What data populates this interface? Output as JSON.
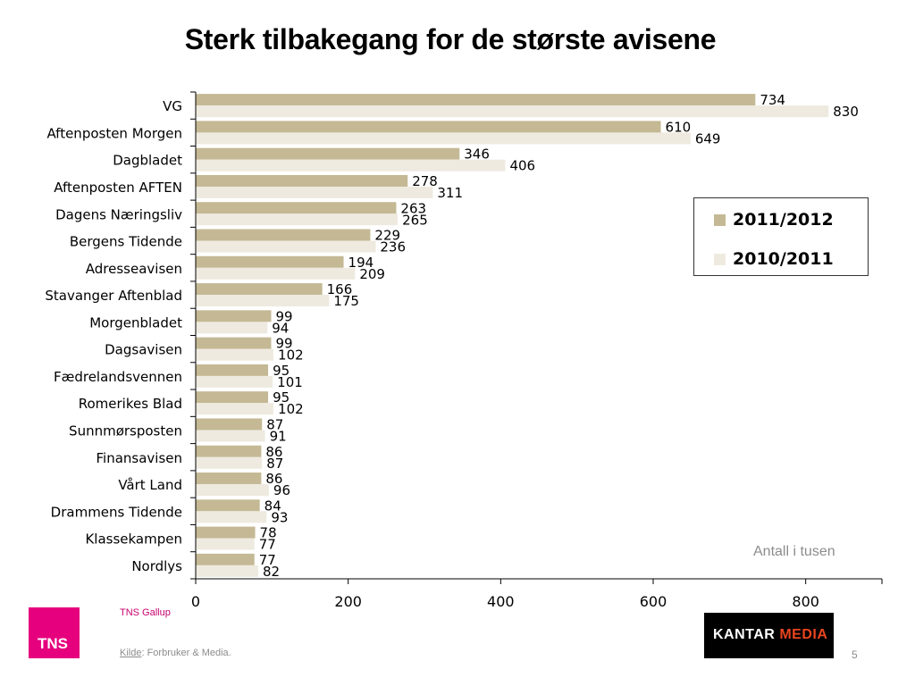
{
  "slide": {
    "title": "Sterk tilbakegang for de største avisene",
    "unit_note": "Antall i tusen",
    "footer": {
      "logo_text": "TNS",
      "org": "TNS Gallup",
      "source_label": "Kilde",
      "source_text": ": Forbruker & Media.",
      "partner_logo_word1": "KANTAR",
      "partner_logo_word2": "MEDIA",
      "page_number": "5"
    }
  },
  "chart_data": {
    "type": "bar",
    "orientation": "horizontal",
    "categories": [
      "VG",
      "Aftenposten Morgen",
      "Dagbladet",
      "Aftenposten AFTEN",
      "Dagens Næringsliv",
      "Bergens Tidende",
      "Adresseavisen",
      "Stavanger Aftenblad",
      "Morgenbladet",
      "Dagsavisen",
      "Fædrelandsvennen",
      "Romerikes Blad",
      "Sunnmørsposten",
      "Finansavisen",
      "Vårt Land",
      "Drammens Tidende",
      "Klassekampen",
      "Nordlys"
    ],
    "series": [
      {
        "name": "2011/2012",
        "color": "#c4b994",
        "values": [
          734,
          610,
          346,
          278,
          263,
          229,
          194,
          166,
          99,
          99,
          95,
          95,
          87,
          86,
          86,
          84,
          78,
          77
        ]
      },
      {
        "name": "2010/2011",
        "color": "#eeeadf",
        "values": [
          830,
          649,
          406,
          311,
          265,
          236,
          209,
          175,
          94,
          102,
          101,
          102,
          91,
          87,
          96,
          93,
          77,
          82
        ]
      }
    ],
    "xlim": [
      0,
      900
    ],
    "xticks": [
      0,
      200,
      400,
      600,
      800
    ],
    "grid": false,
    "data_labels": true,
    "legend_position": "right"
  }
}
